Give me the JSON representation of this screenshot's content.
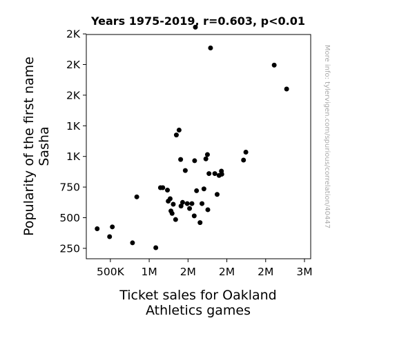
{
  "chart_data": {
    "type": "scatter",
    "title": "Years 1975-2019, r=0.603, p<0.01",
    "xlabel_lines": [
      "Ticket sales for Oakland",
      "Athletics games"
    ],
    "ylabel_lines": [
      "Popularity of the first name",
      "Sasha"
    ],
    "side_note": "More info: tylervigen.com/spurious/correlation/40447",
    "xlim": [
      190000,
      3080000
    ],
    "ylim": [
      165,
      1995
    ],
    "x_ticks": [
      {
        "value": 500000,
        "label": "500K"
      },
      {
        "value": 1000000,
        "label": "1M"
      },
      {
        "value": 1500000,
        "label": "2M"
      },
      {
        "value": 2000000,
        "label": "2M"
      },
      {
        "value": 2500000,
        "label": "2M"
      },
      {
        "value": 3000000,
        "label": "3M"
      }
    ],
    "y_ticks": [
      {
        "value": 250,
        "label": "250"
      },
      {
        "value": 500,
        "label": "500"
      },
      {
        "value": 750,
        "label": "750"
      },
      {
        "value": 1000,
        "label": "1K"
      },
      {
        "value": 1250,
        "label": "1K"
      },
      {
        "value": 1500,
        "label": "2K"
      },
      {
        "value": 1750,
        "label": "2K"
      },
      {
        "value": 2000,
        "label": "2K"
      }
    ],
    "grid": false,
    "marker_color": "#000000",
    "x": [
      330000,
      490000,
      525000,
      785000,
      840000,
      1085000,
      1145000,
      1175000,
      1235000,
      1245000,
      1270000,
      1280000,
      1295000,
      1310000,
      1340000,
      1350000,
      1385000,
      1405000,
      1410000,
      1430000,
      1465000,
      1490000,
      1520000,
      1550000,
      1580000,
      1585000,
      1595000,
      1610000,
      1655000,
      1680000,
      1705000,
      1730000,
      1750000,
      1755000,
      1770000,
      1790000,
      1845000,
      1875000,
      1900000,
      1930000,
      1935000,
      2215000,
      2245000,
      2610000,
      2770000
    ],
    "y": [
      410,
      345,
      425,
      295,
      670,
      255,
      745,
      745,
      725,
      635,
      655,
      555,
      535,
      610,
      485,
      1175,
      1215,
      975,
      595,
      625,
      885,
      615,
      575,
      615,
      515,
      965,
      2055,
      720,
      460,
      615,
      735,
      980,
      1015,
      565,
      860,
      1885,
      860,
      690,
      845,
      880,
      855,
      970,
      1035,
      1745,
      1550
    ]
  }
}
